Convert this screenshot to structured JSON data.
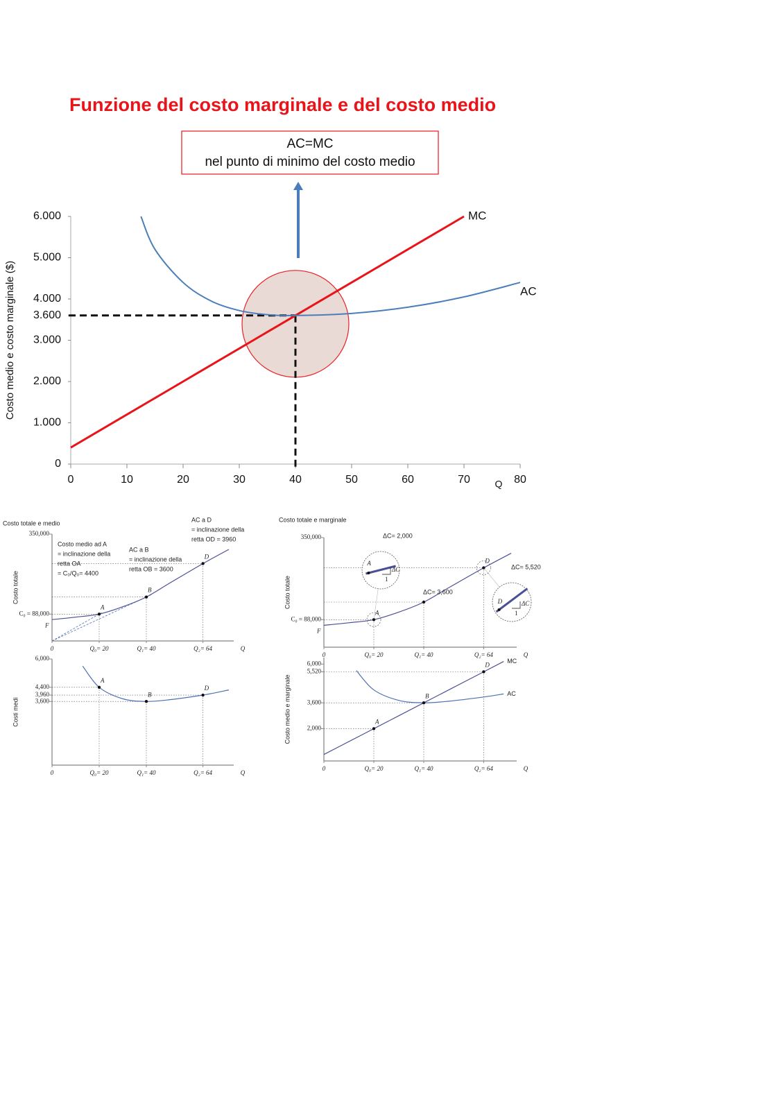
{
  "title": "Funzione del costo marginale e del costo medio",
  "callout": [
    "AC=MC",
    "nel punto di minimo del costo medio"
  ],
  "chart_data": [
    {
      "type": "line",
      "x": [
        0,
        12.5,
        15,
        20,
        25,
        30,
        35,
        40,
        50,
        60,
        70,
        80
      ],
      "series": [
        {
          "name": "MC",
          "color": "#e8141a",
          "values": [
            400,
            1400,
            1600,
            2000,
            2400,
            2800,
            3200,
            3600,
            4400,
            5200,
            6000,
            null
          ]
        },
        {
          "name": "AC",
          "color": "#4a7ebb",
          "values": [
            null,
            6000,
            5200,
            4400,
            3950,
            3720,
            3620,
            3600,
            3650,
            3800,
            4050,
            4400
          ]
        }
      ],
      "xlim": [
        0,
        80
      ],
      "xticks": [
        0,
        10,
        20,
        30,
        40,
        50,
        60,
        70,
        80
      ],
      "ylim": [
        0,
        6000
      ],
      "yticks": [
        0,
        {
          "value": 1000,
          "label": "1.000"
        },
        {
          "value": 2000,
          "label": "2.000"
        },
        {
          "value": 3000,
          "label": "3.000"
        },
        {
          "value": 3600,
          "label": "3.600"
        },
        {
          "value": 4000,
          "label": "4.000"
        },
        {
          "value": 5000,
          "label": "5.000"
        },
        {
          "value": 6000,
          "label": "6.000"
        }
      ],
      "ylabel": "Costo medio e costo marginale ($)",
      "xlabel": "Q",
      "guide": {
        "x": 40,
        "y": 3600
      }
    },
    {
      "type": "line",
      "title": "Costo totale e medio",
      "x": [
        0,
        10,
        20,
        30,
        40,
        50,
        64,
        75
      ],
      "series": [
        {
          "color": "#4b4f96",
          "values": [
            70000,
            78000,
            88000,
            112000,
            144000,
            190000,
            253440,
            300000
          ]
        }
      ],
      "xlim": [
        0,
        80
      ],
      "xticks": [
        0,
        {
          "value": 20,
          "label": "Q₀= 20"
        },
        {
          "value": 40,
          "label": "Q₁= 40"
        },
        {
          "value": 64,
          "label": "Q₂= 64"
        }
      ],
      "ylim": [
        0,
        350000
      ],
      "yticks": [
        {
          "value": 350000,
          "label": "350,000"
        },
        {
          "value": 88000,
          "label": "C₀ = 88,000"
        }
      ],
      "ylabel": "Costo totale",
      "xlabel": "Q",
      "intercept_label": "F",
      "points": [
        {
          "label": "A",
          "x": 20,
          "y": 88000
        },
        {
          "label": "B",
          "x": 40,
          "y": 144000
        },
        {
          "label": "D",
          "x": 64,
          "y": 253440
        }
      ],
      "ray_points": [
        "A",
        "B"
      ],
      "annotations": [
        [
          "Costo medio ad A",
          "= inclinazione della",
          "retta OA",
          "= C₀/Q₀= 4400"
        ],
        [
          "AC a B",
          "= inclinazione della",
          "retta OB = 3600"
        ],
        [
          "AC a D",
          "= inclinazione della",
          "retta OD = 3960"
        ]
      ]
    },
    {
      "type": "line",
      "x": [
        13,
        20,
        30,
        40,
        50,
        64,
        75
      ],
      "series": [
        {
          "color": "#4b6fb5",
          "values": [
            5600,
            4400,
            3750,
            3600,
            3700,
            3960,
            4250
          ]
        }
      ],
      "xlim": [
        0,
        80
      ],
      "xticks": [
        0,
        {
          "value": 20,
          "label": "Q₀= 20"
        },
        {
          "value": 40,
          "label": "Q₁= 40"
        },
        {
          "value": 64,
          "label": "Q₂= 64"
        }
      ],
      "ylim": [
        0,
        6000
      ],
      "yticks": [
        {
          "value": 6000,
          "label": "6,000"
        },
        {
          "value": 4400,
          "label": "4,400"
        },
        {
          "value": 3960,
          "label": "3,960"
        },
        {
          "value": 3600,
          "label": "3,600"
        }
      ],
      "ylabel": "Costi medi",
      "xlabel": "Q",
      "points": [
        {
          "label": "A",
          "x": 20,
          "y": 4400
        },
        {
          "label": "B",
          "x": 40,
          "y": 3600
        },
        {
          "label": "D",
          "x": 64,
          "y": 3960
        }
      ]
    },
    {
      "type": "line",
      "title": "Costo totale e marginale",
      "x": [
        0,
        10,
        20,
        30,
        40,
        50,
        64,
        75
      ],
      "series": [
        {
          "color": "#4b4f96",
          "values": [
            70000,
            78000,
            88000,
            112000,
            144000,
            190000,
            253440,
            300000
          ]
        }
      ],
      "xlim": [
        0,
        80
      ],
      "xticks": [
        0,
        {
          "value": 20,
          "label": "Q₀= 20"
        },
        {
          "value": 40,
          "label": "Q₁= 40"
        },
        {
          "value": 64,
          "label": "Q₂= 64"
        }
      ],
      "ylim": [
        0,
        350000
      ],
      "yticks": [
        {
          "value": 350000,
          "label": "350,000"
        },
        {
          "value": 88000,
          "label": "C₀ = 88,000"
        }
      ],
      "ylabel": "Costo totale",
      "xlabel": "Q",
      "intercept_label": "F",
      "points": [
        {
          "label": "A",
          "x": 20,
          "y": 88000
        },
        {
          "x": 40,
          "y": 144000
        },
        {
          "label": "D",
          "x": 64,
          "y": 253440
        }
      ],
      "annotations": [
        [
          "ΔC= 2,000"
        ],
        [
          "ΔC= 3,600"
        ],
        [
          "ΔC= 5,520"
        ]
      ],
      "magnifiers": [
        {
          "label": "A",
          "run": "1",
          "rise": "ΔC"
        },
        {
          "label": "D",
          "run": "1",
          "rise": "ΔC"
        }
      ]
    },
    {
      "type": "line",
      "x": [
        0,
        13,
        20,
        30,
        40,
        50,
        64,
        72
      ],
      "series": [
        {
          "name": "MC",
          "color": "#4b4f96",
          "values": [
            400,
            1440,
            2000,
            2800,
            3600,
            4400,
            5520,
            6160
          ]
        },
        {
          "name": "AC",
          "color": "#4b6fb5",
          "values": [
            null,
            5600,
            4400,
            3750,
            3600,
            3700,
            3960,
            4150
          ]
        }
      ],
      "xlim": [
        0,
        80
      ],
      "xticks": [
        0,
        {
          "value": 20,
          "label": "Q₀= 20"
        },
        {
          "value": 40,
          "label": "Q₁= 40"
        },
        {
          "value": 64,
          "label": "Q₂= 64"
        }
      ],
      "ylim": [
        0,
        6400
      ],
      "yticks": [
        {
          "value": 6000,
          "label": "6,000"
        },
        {
          "value": 5520,
          "label": "5,520"
        },
        {
          "value": 3600,
          "label": "3,600"
        },
        {
          "value": 2000,
          "label": "2,000"
        }
      ],
      "ylabel": "Costo medio e marginale",
      "xlabel": "Q",
      "points": [
        {
          "label": "A",
          "x": 20,
          "y": 2000
        },
        {
          "label": "B",
          "x": 40,
          "y": 3600
        },
        {
          "label": "D",
          "x": 64,
          "y": 5520
        }
      ]
    }
  ]
}
